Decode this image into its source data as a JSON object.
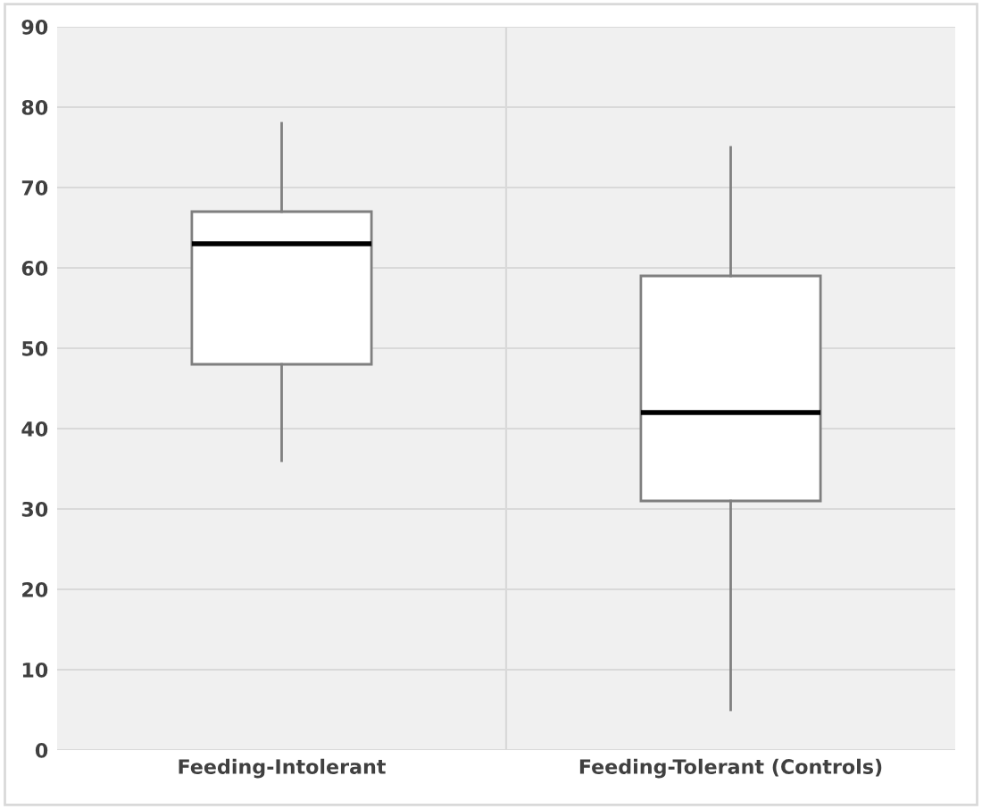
{
  "chart_data": {
    "type": "box",
    "categories": [
      "Feeding-Intolerant",
      "Feeding-Tolerant (Controls)"
    ],
    "boxes": [
      {
        "low": 36,
        "q1": 48,
        "median": 63,
        "q3": 67,
        "high": 78
      },
      {
        "low": 5,
        "q1": 31,
        "median": 42,
        "q3": 59,
        "high": 75
      }
    ],
    "ylim": [
      0,
      90
    ],
    "yticks": [
      0,
      10,
      20,
      30,
      40,
      50,
      60,
      70,
      80,
      90
    ],
    "grid": true,
    "legend": false
  }
}
